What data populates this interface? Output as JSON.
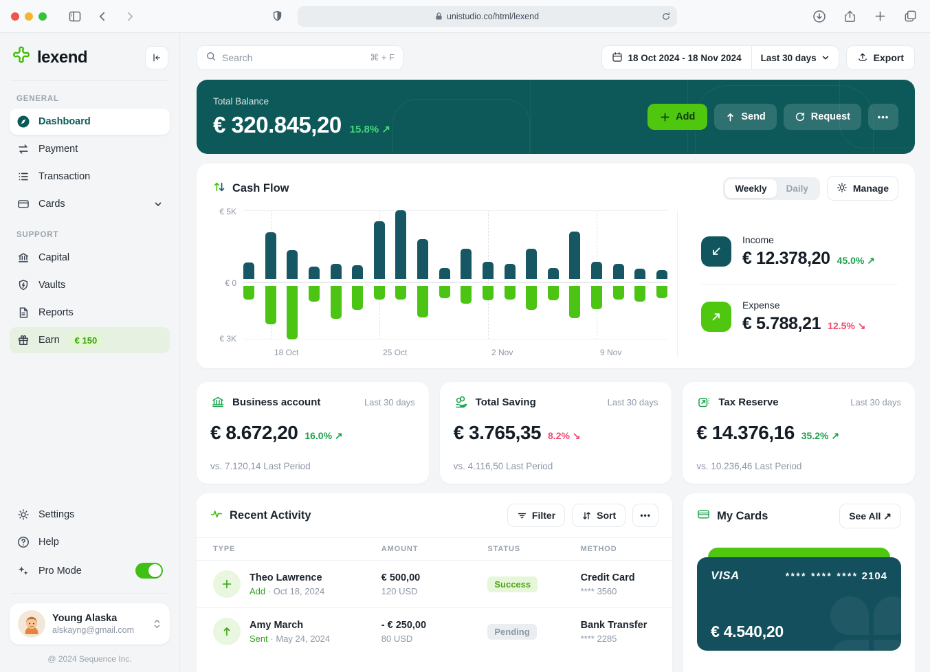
{
  "browser": {
    "url": "unistudio.co/html/lexend",
    "icons": [
      "sidebar-toggle-icon",
      "back-icon",
      "forward-icon",
      "shield-icon",
      "lock-icon",
      "reload-icon",
      "downloads-icon",
      "share-icon",
      "new-tab-icon",
      "tab-overview-icon"
    ]
  },
  "sidebar": {
    "logo_text": "lexend",
    "sections": [
      {
        "label": "GENERAL",
        "items": [
          {
            "label": "Dashboard",
            "icon": "compass",
            "active": true
          },
          {
            "label": "Payment",
            "icon": "transfer"
          },
          {
            "label": "Transaction",
            "icon": "list"
          },
          {
            "label": "Cards",
            "icon": "credit-card",
            "chevron": true
          }
        ]
      },
      {
        "label": "SUPPORT",
        "items": [
          {
            "label": "Capital",
            "icon": "bank"
          },
          {
            "label": "Vaults",
            "icon": "shield-bolt"
          },
          {
            "label": "Reports",
            "icon": "document"
          },
          {
            "label": "Earn",
            "icon": "gift",
            "badge": "€ 150"
          }
        ]
      }
    ],
    "footer_items": [
      {
        "label": "Settings",
        "icon": "gear"
      },
      {
        "label": "Help",
        "icon": "help"
      },
      {
        "label": "Pro Mode",
        "icon": "sparkles",
        "toggle": true,
        "toggle_state": "on"
      }
    ],
    "user": {
      "name": "Young Alaska",
      "email": "alskayng@gmail.com"
    },
    "copyright": "@ 2024 Sequence Inc."
  },
  "header": {
    "search_placeholder": "Search",
    "search_shortcut": "⌘ + F",
    "date_range": "18 Oct 2024 - 18 Nov 2024",
    "period": "Last 30 days",
    "export_label": "Export"
  },
  "balance": {
    "label": "Total Balance",
    "amount": "€ 320.845,20",
    "change": "15.8% ↗",
    "buttons": {
      "add": "Add",
      "send": "Send",
      "request": "Request",
      "more": "•••"
    }
  },
  "cashflow": {
    "title": "Cash Flow",
    "tabs": [
      "Weekly",
      "Daily"
    ],
    "active_tab": "Weekly",
    "manage_label": "Manage",
    "income": {
      "label": "Income",
      "amount": "€ 12.378,20",
      "change": "45.0% ↗"
    },
    "expense": {
      "label": "Expense",
      "amount": "€ 5.788,21",
      "change": "12.5% ↘"
    }
  },
  "chart_data": {
    "type": "bar",
    "title": "Cash Flow (Weekly)",
    "unit": "EUR thousands",
    "ylabels": [
      "€ 5K",
      "€ 0",
      "€ 3K"
    ],
    "ylim_pos": 5,
    "ylim_neg": 3,
    "grid": "vertical-dashed",
    "x_ticks": [
      "18 Oct",
      "25 Oct",
      "2 Nov",
      "9 Nov"
    ],
    "x_tick_bar_indices": [
      1,
      6,
      11,
      16
    ],
    "series": [
      {
        "name": "income",
        "color": "#175763",
        "values": [
          1.2,
          3.4,
          2.1,
          0.9,
          1.1,
          1.0,
          4.2,
          5.0,
          2.9,
          0.8,
          2.2,
          1.25,
          1.1,
          2.2,
          0.8,
          3.45,
          1.25,
          1.1,
          0.75,
          0.65
        ]
      },
      {
        "name": "expense",
        "color": "#4cc414",
        "values": [
          -0.75,
          -2.15,
          -3.0,
          -0.9,
          -1.85,
          -1.35,
          -0.75,
          -0.75,
          -1.75,
          -0.7,
          -1.0,
          -0.8,
          -0.75,
          -1.35,
          -0.8,
          -1.8,
          -1.3,
          -0.75,
          -0.9,
          -0.7
        ]
      }
    ]
  },
  "stat_cards": [
    {
      "icon": "bank",
      "title": "Business account",
      "period": "Last 30 days",
      "amount": "€ 8.672,20",
      "change": "16.0% ↗",
      "trend": "up",
      "vs": "vs. 7.120,14 Last Period"
    },
    {
      "icon": "hand-coin",
      "title": "Total Saving",
      "period": "Last 30 days",
      "amount": "€ 3.765,35",
      "change": "8.2% ↘",
      "trend": "down",
      "vs": "vs. 4.116,50 Last Period"
    },
    {
      "icon": "wallet-arrow",
      "title": "Tax Reserve",
      "period": "Last 30 days",
      "amount": "€ 14.376,16",
      "change": "35.2% ↗",
      "trend": "up",
      "vs": "vs. 10.236,46 Last Period"
    }
  ],
  "activity": {
    "title": "Recent Activity",
    "filter_label": "Filter",
    "sort_label": "Sort",
    "more_label": "•••",
    "columns": [
      "TYPE",
      "AMOUNT",
      "STATUS",
      "METHOD"
    ],
    "rows": [
      {
        "icon": "plus",
        "name": "Theo Lawrence",
        "action": "Add",
        "dot": "·",
        "date": "Oct 18, 2024",
        "amount": "€ 500,00",
        "amount_sub": "120 USD",
        "status": "Success",
        "status_type": "success",
        "method": "Credit Card",
        "method_sub": "**** 3560"
      },
      {
        "icon": "arrow-up",
        "name": "Amy March",
        "action": "Sent",
        "dot": "·",
        "date": "May 24, 2024",
        "amount": "- € 250,00",
        "amount_sub": "80 USD",
        "status": "Pending",
        "status_type": "pending",
        "method": "Bank Transfer",
        "method_sub": "**** 2285"
      }
    ]
  },
  "my_cards": {
    "title": "My Cards",
    "see_all": "See All ↗",
    "card": {
      "brand": "VISA",
      "number_masked": "**** **** ****",
      "number_last4": "2104",
      "balance": "€ 4.540,20"
    }
  },
  "colors": {
    "brand_teal": "#0d5959",
    "brand_green": "#4ec70e",
    "positive_text": "#18a24a",
    "negative_text": "#f2486d",
    "chart_income": "#175763",
    "chart_expense": "#4cc414"
  }
}
